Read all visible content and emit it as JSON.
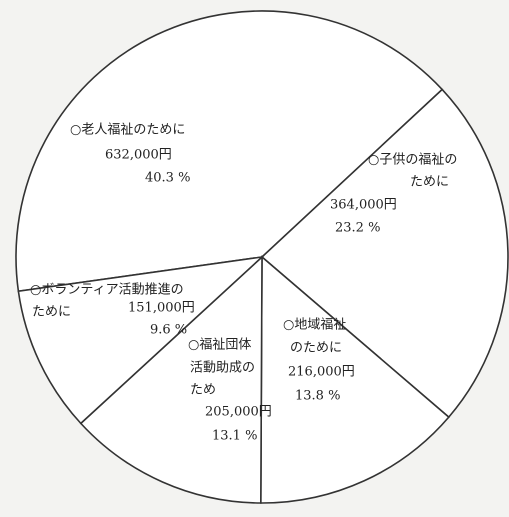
{
  "chart_data": {
    "type": "pie",
    "slices": [
      {
        "label_lines": [
          "○老人福祉のために"
        ],
        "amount": "632,000円",
        "value": 40.3,
        "value_label": "40.3 %"
      },
      {
        "label_lines": [
          "○子供の福祉の",
          "ために"
        ],
        "amount": "364,000円",
        "value": 23.2,
        "value_label": "23.2 %"
      },
      {
        "label_lines": [
          "○地域福祉",
          "のために"
        ],
        "amount": "216,000円",
        "value": 13.8,
        "value_label": "13.8 %"
      },
      {
        "label_lines": [
          "○福祉団体",
          "活動助成の",
          "ため"
        ],
        "amount": "205,000円",
        "value": 13.1,
        "value_label": "13.1 %"
      },
      {
        "label_lines": [
          "○ボランティア活動推進の",
          "ために"
        ],
        "amount": "151,000円",
        "value": 9.6,
        "value_label": "9.6 %"
      }
    ],
    "fill": "#ffffff",
    "stroke": "#333333"
  }
}
